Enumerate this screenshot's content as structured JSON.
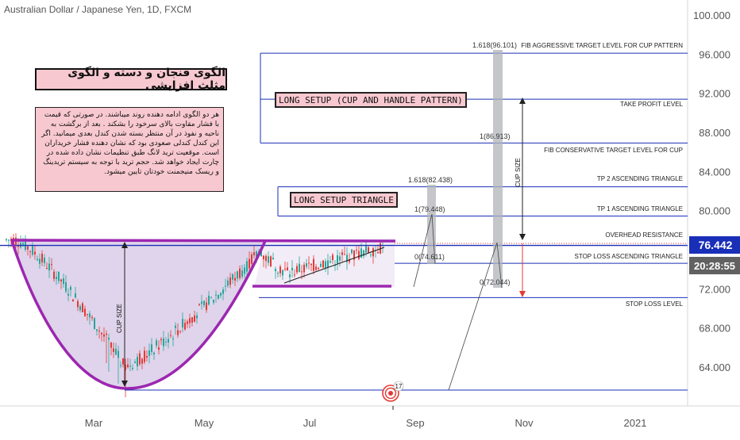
{
  "header": {
    "symbol_title": "Australian Dollar / Japanese Yen, 1D, FXCM"
  },
  "persian": {
    "title": "الگوی فنجان و دسته و الگوی مثلث افزایشی",
    "note": "هر دو الگوی ادامه دهنده روند میباشند. در صورتی که قیمت با فشار مقاوت بالای سرخود را بشکند . بعد از برگشت به ناحیه و نفوذ در آن منتظر بسته شدن کندل بعدی میمانید. اگر این کندل کندلی صعودی بود که نشان دهنده فشار خریداران است. موقعیت ترید لانگ طبق تنظیمات نشان داده شده در چارت ایجاد خواهد شد. حجم ترید با توجه به سیستم تریدینگ و ریسک منیجمنت خودتان تایین میشود."
  },
  "boxes": {
    "long_setup_cup": "LONG SETUP (CUP AND HANDLE PATTERN)",
    "long_setup_triangle": "LONG SETUP TRIANGLE"
  },
  "levels": {
    "fib_aggressive": "FIB AGGRESSIVE TARGET LEVEL FOR CUP PATTERN",
    "take_profit": "TAKE PROFIT LEVEL",
    "fib_conservative": "FIB CONSERVATIVE TARGET LEVEL FOR CUP",
    "tp2": "TP 2 ASCENDING TRIANGLE",
    "tp1": "TP 1 ASCENDING TRIANGLE",
    "overhead": "OVERHEAD RESISTANCE",
    "stop_loss_triangle": "STOP LOSS ASCENDING TRIANGLE",
    "stop_loss": "STOP LOSS LEVEL"
  },
  "fib_labels": {
    "cup_1618": "1.618(96.101)",
    "cup_1": "1(86.913)",
    "cup_0": "0(72.044)",
    "tri_1618": "1.618(82.438)",
    "tri_1": "1(79.448)",
    "tri_0": "0(74.611)"
  },
  "cup_size_label": "CUP SIZE",
  "badges": {
    "last_price": "76.442",
    "countdown": "20:28:55",
    "event_count": "17"
  },
  "colors": {
    "level_line": "#1a2fb8",
    "cup_pattern": "#9c27b0",
    "cup_fill": "#d9cce8",
    "candle_up": "#26a69a",
    "candle_down": "#e53935",
    "price_badge": "#1a2fb8",
    "countdown_badge": "#616161",
    "note_bg": "#f8c8d0",
    "fib_bar": "#b0b3b8"
  },
  "chart_data": {
    "type": "candlestick",
    "title": "Australian Dollar / Japanese Yen, 1D, FXCM",
    "y_axis": {
      "ticks": [
        "100.000",
        "96.000",
        "92.000",
        "88.000",
        "84.000",
        "80.000",
        "72.000",
        "68.000",
        "64.000"
      ],
      "ylim": [
        60,
        101
      ]
    },
    "x_axis": {
      "ticks": [
        "Mar",
        "May",
        "Jul",
        "Sep",
        "Nov",
        "2021"
      ]
    },
    "levels": [
      {
        "name": "FIB AGGRESSIVE TARGET LEVEL FOR CUP PATTERN",
        "value": 96.101
      },
      {
        "name": "TAKE PROFIT LEVEL",
        "value": 91.4
      },
      {
        "name": "FIB CONSERVATIVE TARGET LEVEL FOR CUP",
        "value": 86.913
      },
      {
        "name": "TP 2 ASCENDING TRIANGLE",
        "value": 82.438
      },
      {
        "name": "TP 1 ASCENDING TRIANGLE",
        "value": 79.448
      },
      {
        "name": "OVERHEAD RESISTANCE",
        "value": 76.442
      },
      {
        "name": "STOP LOSS ASCENDING TRIANGLE",
        "value": 74.611
      },
      {
        "name": "STOP LOSS LEVEL",
        "value": 71.1
      }
    ],
    "last_price": 76.442,
    "grid": false
  }
}
